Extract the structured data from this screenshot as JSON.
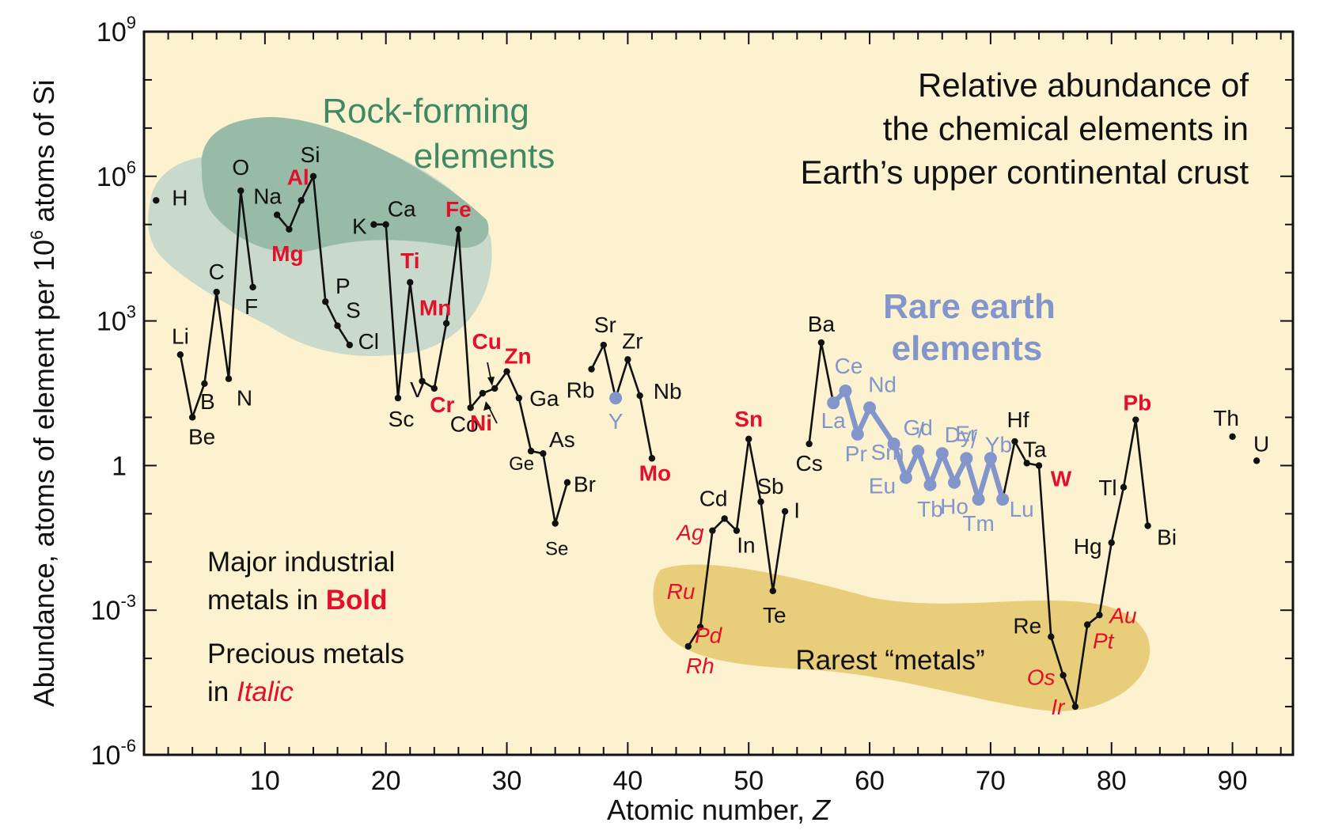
{
  "chart_data": {
    "type": "line",
    "title_lines": [
      "Relative abundance of",
      "the chemical elements in",
      "Earth’s upper continental crust"
    ],
    "xlabel": "Atomic number, ",
    "xlabel_var": "Z",
    "ylabel_pre": "Abundance, atoms of element per 10",
    "ylabel_exp": "6",
    "ylabel_post": " atoms of Si",
    "xlim": [
      0,
      95
    ],
    "ylim_log10": [
      -6,
      9
    ],
    "y_scale": "log",
    "x_ticks": [
      10,
      20,
      30,
      40,
      50,
      60,
      70,
      80,
      90
    ],
    "y_ticks": [
      {
        "log": 9,
        "base": "10",
        "exp": "9"
      },
      {
        "log": 6,
        "base": "10",
        "exp": "6"
      },
      {
        "log": 3,
        "base": "10",
        "exp": "3"
      },
      {
        "log": 0,
        "base": "1",
        "exp": ""
      },
      {
        "log": -3,
        "base": "10",
        "exp": "-3"
      },
      {
        "log": -6,
        "base": "10",
        "exp": "-6"
      }
    ],
    "regions": [
      {
        "name": "Rock-forming",
        "name2": "elements",
        "color": "#4a8a6a"
      },
      {
        "name": "Rare earth",
        "name2": "elements",
        "color": "#8296cc"
      },
      {
        "name": "Rarest “metals”",
        "color": "#e8cd7a"
      }
    ],
    "notes": {
      "major_line1": "Major industrial",
      "major_line2": "metals in ",
      "major_word": "Bold",
      "precious_line1": "Precious metals",
      "precious_line2": "in ",
      "precious_word": "Italic"
    },
    "colors": {
      "background": "#fcf2cf",
      "main_line": "#111111",
      "rare_earth": "#8296cc",
      "highlight": "#e2102a",
      "rock_forming_outer": "#c9d9cc",
      "rock_forming_inner": "#97bba6",
      "rarest_metals": "#e8cd7a"
    },
    "series": [
      {
        "segments": [
          [
            [
              3,
              2.3
            ],
            [
              4,
              1.0
            ],
            [
              5,
              1.7
            ],
            [
              6,
              3.6
            ],
            [
              7,
              1.8
            ],
            [
              8,
              5.7
            ],
            [
              9,
              3.7
            ]
          ],
          [
            [
              11,
              5.2
            ],
            [
              12,
              4.9
            ],
            [
              13,
              5.5
            ],
            [
              14,
              6.0
            ],
            [
              15,
              3.4
            ],
            [
              16,
              2.9
            ],
            [
              17,
              2.5
            ]
          ],
          [
            [
              19,
              5.0
            ],
            [
              20,
              5.0
            ],
            [
              21,
              1.4
            ],
            [
              22,
              3.8
            ],
            [
              23,
              1.75
            ],
            [
              24,
              1.6
            ],
            [
              25,
              2.95
            ],
            [
              26,
              4.9
            ],
            [
              27,
              1.2
            ],
            [
              28,
              1.5
            ],
            [
              29,
              1.6
            ],
            [
              30,
              1.95
            ],
            [
              31,
              1.4
            ],
            [
              32,
              0.3
            ],
            [
              33,
              0.25
            ],
            [
              34,
              -1.2
            ],
            [
              35,
              -0.35
            ]
          ],
          [
            [
              37,
              2.0
            ],
            [
              38,
              2.5
            ],
            [
              39,
              1.4
            ],
            [
              40,
              2.2
            ],
            [
              41,
              1.45
            ],
            [
              42,
              0.15
            ]
          ],
          [
            [
              45,
              -3.75
            ],
            [
              46,
              -3.35
            ],
            [
              47,
              -1.35
            ],
            [
              48,
              -1.1
            ],
            [
              49,
              -1.35
            ],
            [
              50,
              0.55
            ],
            [
              51,
              -0.75
            ],
            [
              52,
              -2.6
            ],
            [
              53,
              -0.95
            ]
          ],
          [
            [
              55,
              0.45
            ],
            [
              56,
              2.55
            ],
            [
              57,
              1.3
            ]
          ],
          [
            [
              71,
              -0.7
            ],
            [
              72,
              0.5
            ],
            [
              73,
              0.05
            ],
            [
              74,
              0.0
            ],
            [
              75,
              -3.55
            ],
            [
              76,
              -4.35
            ],
            [
              77,
              -5.0
            ],
            [
              78,
              -3.3
            ],
            [
              79,
              -3.1
            ],
            [
              80,
              -1.6
            ],
            [
              81,
              -0.45
            ],
            [
              82,
              0.95
            ],
            [
              83,
              -1.25
            ]
          ]
        ]
      },
      {
        "name": "Rare earth elements",
        "points": [
          [
            57,
            1.3
          ],
          [
            58,
            1.55
          ],
          [
            59,
            0.65
          ],
          [
            60,
            1.2
          ],
          [
            62,
            0.45
          ],
          [
            63,
            -0.25
          ],
          [
            64,
            0.3
          ],
          [
            65,
            -0.4
          ],
          [
            66,
            0.25
          ],
          [
            67,
            -0.35
          ],
          [
            68,
            0.15
          ],
          [
            69,
            -0.7
          ],
          [
            70,
            0.15
          ],
          [
            71,
            -0.7
          ]
        ]
      },
      {
        "name": "Isolated",
        "points": [
          [
            1,
            5.5
          ],
          [
            90,
            0.6
          ],
          [
            92,
            0.1
          ]
        ]
      }
    ],
    "y_point": {
      "z": 39,
      "log": 1.4
    },
    "element_labels": [
      {
        "t": "H",
        "z": 1,
        "log": 5.5,
        "c": "n",
        "s": "lg"
      },
      {
        "t": "Li",
        "z": 3,
        "log": 2.3,
        "c": "n",
        "s": "lg"
      },
      {
        "t": "Be",
        "z": 4,
        "log": 1.0,
        "c": "n",
        "s": "lg"
      },
      {
        "t": "B",
        "z": 5,
        "log": 1.7,
        "c": "n",
        "s": "lg"
      },
      {
        "t": "C",
        "z": 6,
        "log": 3.6,
        "c": "n",
        "s": "lg"
      },
      {
        "t": "N",
        "z": 7,
        "log": 1.8,
        "c": "n",
        "s": "lg"
      },
      {
        "t": "O",
        "z": 8,
        "log": 5.7,
        "c": "n",
        "s": "lg"
      },
      {
        "t": "F",
        "z": 9,
        "log": 3.7,
        "c": "n",
        "s": "lg"
      },
      {
        "t": "Na",
        "z": 11,
        "log": 5.2,
        "c": "n",
        "s": "lg"
      },
      {
        "t": "Mg",
        "z": 12,
        "log": 4.9,
        "c": "rb",
        "s": "lg"
      },
      {
        "t": "Al",
        "z": 13,
        "log": 5.5,
        "c": "rb",
        "s": "lg"
      },
      {
        "t": "Si",
        "z": 14,
        "log": 6.0,
        "c": "n",
        "s": "lg"
      },
      {
        "t": "P",
        "z": 15,
        "log": 3.4,
        "c": "n",
        "s": "lg"
      },
      {
        "t": "S",
        "z": 16,
        "log": 2.9,
        "c": "n",
        "s": "lg"
      },
      {
        "t": "Cl",
        "z": 17,
        "log": 2.5,
        "c": "n",
        "s": "lg"
      },
      {
        "t": "K",
        "z": 19,
        "log": 5.0,
        "c": "n",
        "s": "lg"
      },
      {
        "t": "Ca",
        "z": 20,
        "log": 5.0,
        "c": "n",
        "s": "lg"
      },
      {
        "t": "Sc",
        "z": 21,
        "log": 1.4,
        "c": "n",
        "s": "lg"
      },
      {
        "t": "Ti",
        "z": 22,
        "log": 3.8,
        "c": "rb",
        "s": "lg"
      },
      {
        "t": "V",
        "z": 23,
        "log": 1.75,
        "c": "n",
        "s": "lg"
      },
      {
        "t": "Cr",
        "z": 24,
        "log": 1.6,
        "c": "rb",
        "s": "lg"
      },
      {
        "t": "Mn",
        "z": 25,
        "log": 2.95,
        "c": "rb",
        "s": "lg"
      },
      {
        "t": "Fe",
        "z": 26,
        "log": 4.9,
        "c": "rb",
        "s": "lg"
      },
      {
        "t": "Co",
        "z": 27,
        "log": 1.2,
        "c": "n",
        "s": "lg"
      },
      {
        "t": "Ni",
        "z": 28,
        "log": 1.5,
        "c": "rb",
        "s": "lg"
      },
      {
        "t": "Cu",
        "z": 29,
        "log": 1.6,
        "c": "rb",
        "s": "lg"
      },
      {
        "t": "Zn",
        "z": 30,
        "log": 1.95,
        "c": "rb",
        "s": "lg"
      },
      {
        "t": "Ga",
        "z": 31,
        "log": 1.4,
        "c": "n",
        "s": "lg"
      },
      {
        "t": "Ge",
        "z": 32,
        "log": 0.3,
        "c": "n",
        "s": "sm"
      },
      {
        "t": "As",
        "z": 33,
        "log": 0.25,
        "c": "n",
        "s": "lg"
      },
      {
        "t": "Se",
        "z": 34,
        "log": -1.2,
        "c": "n",
        "s": "sm"
      },
      {
        "t": "Br",
        "z": 35,
        "log": -0.35,
        "c": "n",
        "s": "lg"
      },
      {
        "t": "Rb",
        "z": 37,
        "log": 2.0,
        "c": "n",
        "s": "lg"
      },
      {
        "t": "Sr",
        "z": 38,
        "log": 2.5,
        "c": "n",
        "s": "lg"
      },
      {
        "t": "Y",
        "z": 39,
        "log": 1.4,
        "c": "b",
        "s": "lg"
      },
      {
        "t": "Zr",
        "z": 40,
        "log": 2.2,
        "c": "n",
        "s": "lg"
      },
      {
        "t": "Nb",
        "z": 41,
        "log": 1.45,
        "c": "n",
        "s": "lg"
      },
      {
        "t": "Mo",
        "z": 42,
        "log": 0.15,
        "c": "rb",
        "s": "lg"
      },
      {
        "t": "Ru",
        "z": 44,
        "log": -3.0,
        "c": "ri",
        "s": "lg"
      },
      {
        "t": "Rh",
        "z": 45,
        "log": -3.75,
        "c": "ri",
        "s": "lg"
      },
      {
        "t": "Pd",
        "z": 46,
        "log": -3.35,
        "c": "ri",
        "s": "lg"
      },
      {
        "t": "Ag",
        "z": 47,
        "log": -1.35,
        "c": "ri",
        "s": "lg"
      },
      {
        "t": "Cd",
        "z": 48,
        "log": -1.1,
        "c": "n",
        "s": "lg"
      },
      {
        "t": "In",
        "z": 49,
        "log": -1.35,
        "c": "n",
        "s": "lg"
      },
      {
        "t": "Sn",
        "z": 50,
        "log": 0.55,
        "c": "rb",
        "s": "lg"
      },
      {
        "t": "Sb",
        "z": 51,
        "log": -0.75,
        "c": "n",
        "s": "lg"
      },
      {
        "t": "Te",
        "z": 52,
        "log": -2.6,
        "c": "n",
        "s": "lg"
      },
      {
        "t": "I",
        "z": 53,
        "log": -0.95,
        "c": "n",
        "s": "lg"
      },
      {
        "t": "Cs",
        "z": 55,
        "log": 0.45,
        "c": "n",
        "s": "lg"
      },
      {
        "t": "Ba",
        "z": 56,
        "log": 2.55,
        "c": "n",
        "s": "lg"
      },
      {
        "t": "La",
        "z": 57,
        "log": 1.3,
        "c": "b",
        "s": "lg"
      },
      {
        "t": "Ce",
        "z": 58,
        "log": 1.55,
        "c": "b",
        "s": "lg"
      },
      {
        "t": "Pr",
        "z": 59,
        "log": 0.65,
        "c": "b",
        "s": "lg"
      },
      {
        "t": "Nd",
        "z": 60,
        "log": 1.2,
        "c": "b",
        "s": "lg"
      },
      {
        "t": "Sm",
        "z": 62,
        "log": 0.45,
        "c": "b",
        "s": "lg"
      },
      {
        "t": "Eu",
        "z": 63,
        "log": -0.25,
        "c": "b",
        "s": "lg"
      },
      {
        "t": "Gd",
        "z": 64,
        "log": 0.3,
        "c": "b",
        "s": "lg"
      },
      {
        "t": "Tb",
        "z": 65,
        "log": -0.4,
        "c": "b",
        "s": "lg"
      },
      {
        "t": "Dy",
        "z": 66,
        "log": 0.25,
        "c": "b",
        "s": "lg"
      },
      {
        "t": "Ho",
        "z": 67,
        "log": -0.35,
        "c": "b",
        "s": "lg"
      },
      {
        "t": "Er",
        "z": 68,
        "log": 0.15,
        "c": "b",
        "s": "lg"
      },
      {
        "t": "Tm",
        "z": 69,
        "log": -0.7,
        "c": "b",
        "s": "lg"
      },
      {
        "t": "Yb",
        "z": 70,
        "log": 0.15,
        "c": "b",
        "s": "lg"
      },
      {
        "t": "Lu",
        "z": 71,
        "log": -0.7,
        "c": "b",
        "s": "lg"
      },
      {
        "t": "Hf",
        "z": 72,
        "log": 0.5,
        "c": "n",
        "s": "lg"
      },
      {
        "t": "Ta",
        "z": 73,
        "log": 0.05,
        "c": "n",
        "s": "lg"
      },
      {
        "t": "W",
        "z": 74,
        "log": 0.0,
        "c": "rb",
        "s": "lg"
      },
      {
        "t": "Re",
        "z": 75,
        "log": -3.55,
        "c": "n",
        "s": "lg"
      },
      {
        "t": "Os",
        "z": 76,
        "log": -4.35,
        "c": "ri",
        "s": "lg"
      },
      {
        "t": "Ir",
        "z": 77,
        "log": -5.0,
        "c": "ri",
        "s": "lg"
      },
      {
        "t": "Pt",
        "z": 78,
        "log": -3.3,
        "c": "ri",
        "s": "lg"
      },
      {
        "t": "Au",
        "z": 79,
        "log": -3.1,
        "c": "ri",
        "s": "lg"
      },
      {
        "t": "Hg",
        "z": 80,
        "log": -1.6,
        "c": "n",
        "s": "lg"
      },
      {
        "t": "Tl",
        "z": 81,
        "log": -0.45,
        "c": "n",
        "s": "lg"
      },
      {
        "t": "Pb",
        "z": 82,
        "log": 0.95,
        "c": "rb",
        "s": "lg"
      },
      {
        "t": "Bi",
        "z": 83,
        "log": -1.25,
        "c": "n",
        "s": "lg"
      },
      {
        "t": "Th",
        "z": 90,
        "log": 0.6,
        "c": "n",
        "s": "lg"
      },
      {
        "t": "U",
        "z": 92,
        "log": 0.1,
        "c": "n",
        "s": "lg"
      }
    ]
  }
}
